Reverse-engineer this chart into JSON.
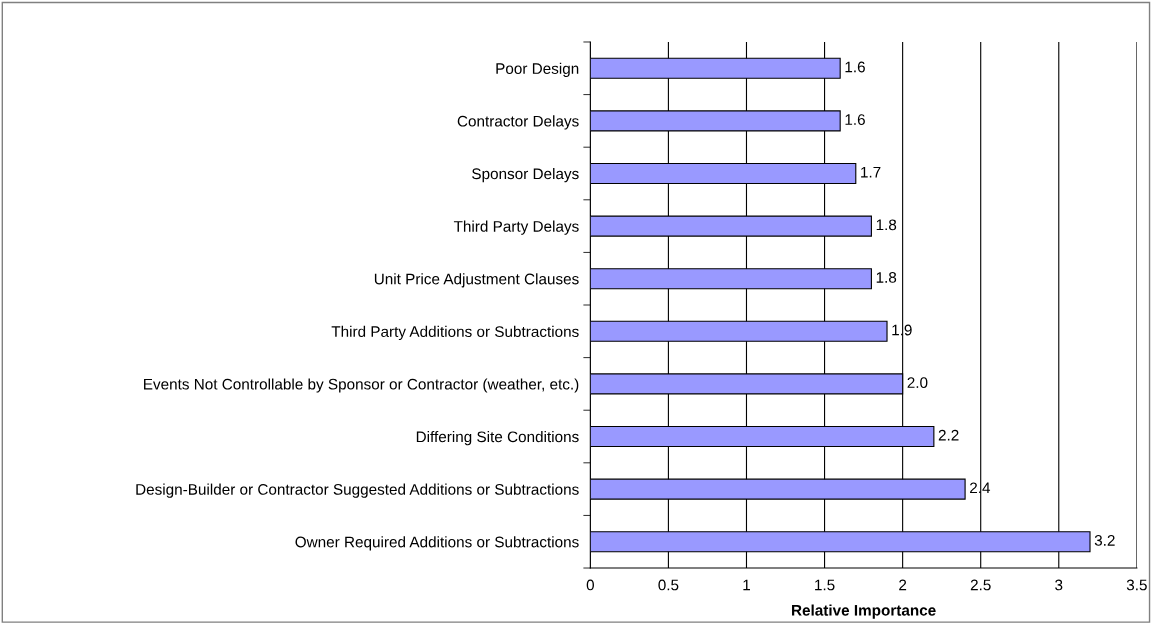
{
  "chart_data": {
    "type": "bar",
    "orientation": "horizontal",
    "xlabel": "Relative Importance",
    "categories": [
      "Poor Design",
      "Contractor Delays",
      "Sponsor Delays",
      "Third Party Delays",
      "Unit Price Adjustment Clauses",
      "Third Party Additions or Subtractions",
      "Events Not Controllable by Sponsor or Contractor (weather, etc.)",
      "Differing Site Conditions",
      "Design-Builder or Contractor Suggested Additions or Subtractions",
      "Owner Required Additions or Subtractions"
    ],
    "values": [
      1.6,
      1.6,
      1.7,
      1.8,
      1.8,
      1.9,
      2.0,
      2.2,
      2.4,
      3.2
    ],
    "value_labels": [
      "1.6",
      "1.6",
      "1.7",
      "1.8",
      "1.8",
      "1.9",
      "2.0",
      "2.2",
      "2.4",
      "3.2"
    ],
    "color": "#9999ff",
    "xlim": [
      0,
      3.5
    ],
    "xticks": [
      0,
      0.5,
      1,
      1.5,
      2,
      2.5,
      3,
      3.5
    ],
    "grid": "x",
    "legend": false
  }
}
